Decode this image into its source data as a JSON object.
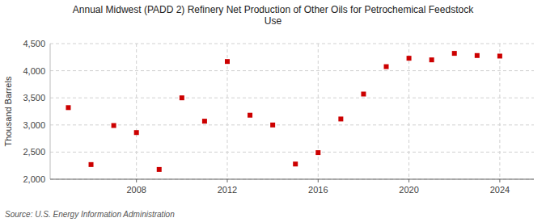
{
  "chart_data": {
    "type": "scatter",
    "title": "Annual Midwest (PADD 2) Refinery Net Production of Other Oils for Petrochemical Feedstock\nUse",
    "ylabel": "Thousand Barrels",
    "source": "Source: U.S. Energy Information Administration",
    "x": [
      2005,
      2006,
      2007,
      2008,
      2009,
      2010,
      2011,
      2012,
      2013,
      2014,
      2015,
      2016,
      2017,
      2018,
      2019,
      2020,
      2021,
      2022,
      2023,
      2024
    ],
    "values": [
      3320,
      2270,
      2990,
      2860,
      2180,
      3500,
      3070,
      4170,
      3180,
      3000,
      2280,
      2490,
      3110,
      3570,
      4075,
      4230,
      4200,
      4320,
      4280,
      4270
    ],
    "color": "#cc0000",
    "marker": "square",
    "grid": true,
    "ylim": [
      2000,
      4500
    ],
    "yticks": [
      {
        "value": 2000,
        "label": "2,000"
      },
      {
        "value": 2500,
        "label": "2,500"
      },
      {
        "value": 3000,
        "label": "3,000"
      },
      {
        "value": 3500,
        "label": "3,500"
      },
      {
        "value": 4000,
        "label": "4,000"
      },
      {
        "value": 4500,
        "label": "4,500"
      }
    ],
    "xlim": [
      2004.2,
      2025.5
    ],
    "xticks": [
      2008,
      2012,
      2016,
      2020,
      2024
    ]
  }
}
